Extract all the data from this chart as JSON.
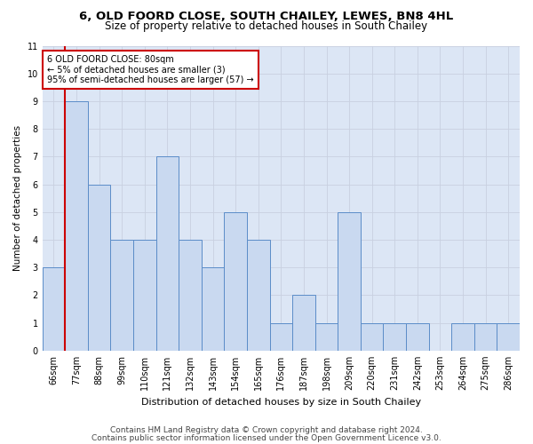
{
  "title1": "6, OLD FOORD CLOSE, SOUTH CHAILEY, LEWES, BN8 4HL",
  "title2": "Size of property relative to detached houses in South Chailey",
  "xlabel": "Distribution of detached houses by size in South Chailey",
  "ylabel": "Number of detached properties",
  "categories": [
    "66sqm",
    "77sqm",
    "88sqm",
    "99sqm",
    "110sqm",
    "121sqm",
    "132sqm",
    "143sqm",
    "154sqm",
    "165sqm",
    "176sqm",
    "187sqm",
    "198sqm",
    "209sqm",
    "220sqm",
    "231sqm",
    "242sqm",
    "253sqm",
    "264sqm",
    "275sqm",
    "286sqm"
  ],
  "values": [
    3,
    9,
    6,
    4,
    4,
    7,
    4,
    3,
    5,
    4,
    1,
    2,
    1,
    5,
    1,
    1,
    1,
    0,
    1,
    1,
    1
  ],
  "bar_color": "#c9d9f0",
  "bar_edge_color": "#5b8cc8",
  "highlight_line_color": "#cc0000",
  "highlight_bar_index": 1,
  "annotation_text": "6 OLD FOORD CLOSE: 80sqm\n← 5% of detached houses are smaller (3)\n95% of semi-detached houses are larger (57) →",
  "annotation_box_color": "#cc0000",
  "ylim": [
    0,
    11
  ],
  "yticks": [
    0,
    1,
    2,
    3,
    4,
    5,
    6,
    7,
    8,
    9,
    10,
    11
  ],
  "grid_color": "#c8d0e0",
  "background_color": "#dce6f5",
  "footnote1": "Contains HM Land Registry data © Crown copyright and database right 2024.",
  "footnote2": "Contains public sector information licensed under the Open Government Licence v3.0.",
  "title1_fontsize": 9.5,
  "title2_fontsize": 8.5,
  "xlabel_fontsize": 8,
  "ylabel_fontsize": 7.5,
  "tick_fontsize": 7,
  "annot_fontsize": 7,
  "footnote_fontsize": 6.5
}
